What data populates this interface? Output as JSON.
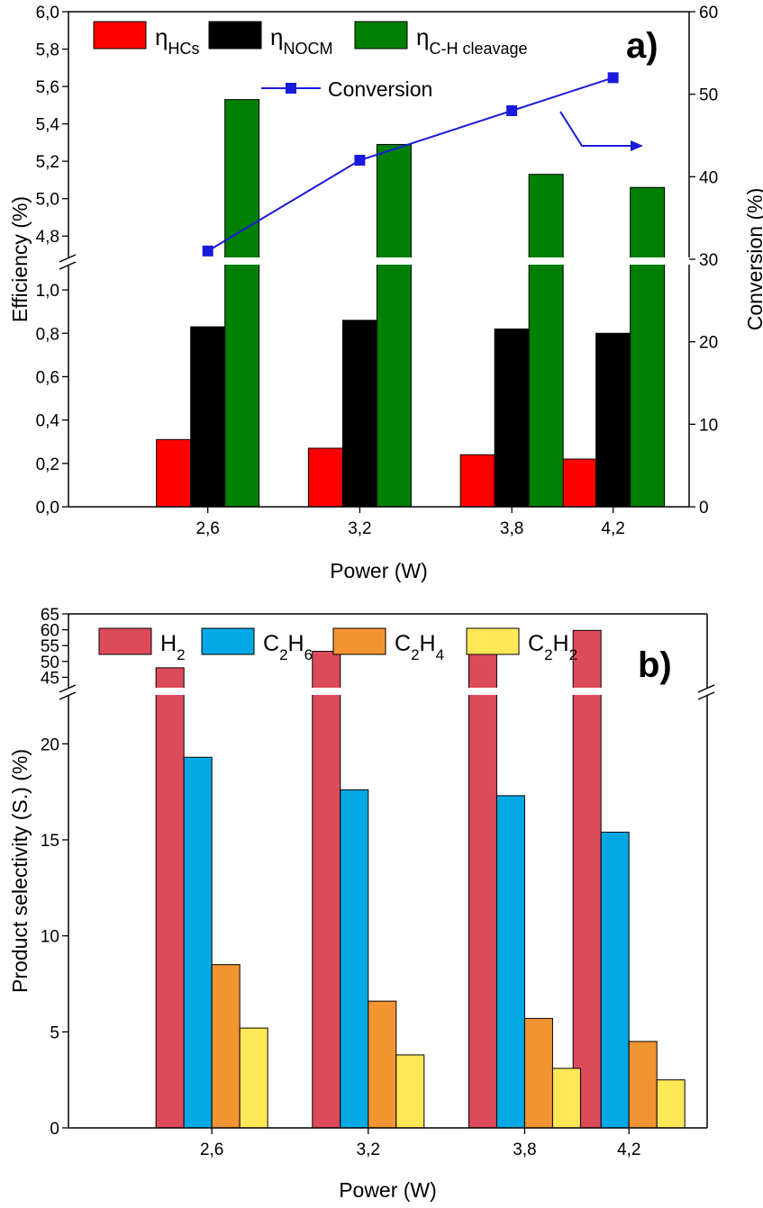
{
  "chart_data": [
    {
      "type": "bar",
      "panel_label": "a)",
      "categories": [
        "2,6",
        "3,2",
        "3,8",
        "4,2"
      ],
      "x": [
        2.6,
        3.2,
        3.8,
        4.2
      ],
      "xlabel": "Power (W)",
      "ylabel": "Efficiency (%)",
      "y2label": "Conversion (%)",
      "ylim_lower": [
        0,
        1.1
      ],
      "ylim_upper": [
        4.7,
        6.0
      ],
      "y_break": true,
      "y2lim": [
        0,
        60
      ],
      "yticks_lower": [
        "0,0",
        "0,2",
        "0,4",
        "0,6",
        "0,8",
        "1,0"
      ],
      "yticks_upper": [
        "4,8",
        "5,0",
        "5,2",
        "5,4",
        "5,6",
        "5,8",
        "6,0"
      ],
      "y2ticks": [
        "0",
        "10",
        "20",
        "30",
        "40",
        "50",
        "60"
      ],
      "grid": false,
      "legend_position": "top",
      "series": [
        {
          "name": "η",
          "sub": "HCs",
          "color": "#ff0000",
          "values": [
            0.31,
            0.27,
            0.24,
            0.22
          ]
        },
        {
          "name": "η",
          "sub": "NOCM",
          "color": "#000000",
          "values": [
            0.83,
            0.86,
            0.82,
            0.8
          ]
        },
        {
          "name": "η",
          "sub": "C-H cleavage",
          "color": "#008000",
          "values": [
            5.53,
            5.29,
            5.13,
            5.06
          ]
        }
      ],
      "line_series": {
        "name": "Conversion",
        "color": "#1a1adc",
        "axis": "right",
        "values": [
          31,
          42,
          48,
          52
        ]
      }
    },
    {
      "type": "bar",
      "panel_label": "b)",
      "categories": [
        "2,6",
        "3,2",
        "3,8",
        "4,2"
      ],
      "x": [
        2.6,
        3.2,
        3.8,
        4.2
      ],
      "xlabel": "Power (W)",
      "ylabel": "Product selectivity (S.) (%)",
      "ylim_lower": [
        0,
        22.5
      ],
      "ylim_upper": [
        42,
        65
      ],
      "y_break": true,
      "yticks_lower": [
        "0",
        "5",
        "10",
        "15",
        "20"
      ],
      "yticks_upper": [
        "45",
        "50",
        "55",
        "60",
        "65"
      ],
      "grid": false,
      "legend_position": "top",
      "series": [
        {
          "name": "H",
          "sub": "2",
          "mid": "",
          "sub2": "",
          "color": "#dd4b5b",
          "values": [
            48.0,
            53.2,
            54.7,
            59.8
          ]
        },
        {
          "name": "C",
          "sub": "2",
          "mid": "H",
          "sub2": "6",
          "color": "#00a9e6",
          "values": [
            19.3,
            17.6,
            17.3,
            15.4
          ]
        },
        {
          "name": "C",
          "sub": "2",
          "mid": "H",
          "sub2": "4",
          "color": "#f39432",
          "values": [
            8.5,
            6.6,
            5.7,
            4.5
          ]
        },
        {
          "name": "C",
          "sub": "2",
          "mid": "H",
          "sub2": "2",
          "color": "#ffe756",
          "values": [
            5.2,
            3.8,
            3.1,
            2.5
          ]
        }
      ]
    }
  ]
}
